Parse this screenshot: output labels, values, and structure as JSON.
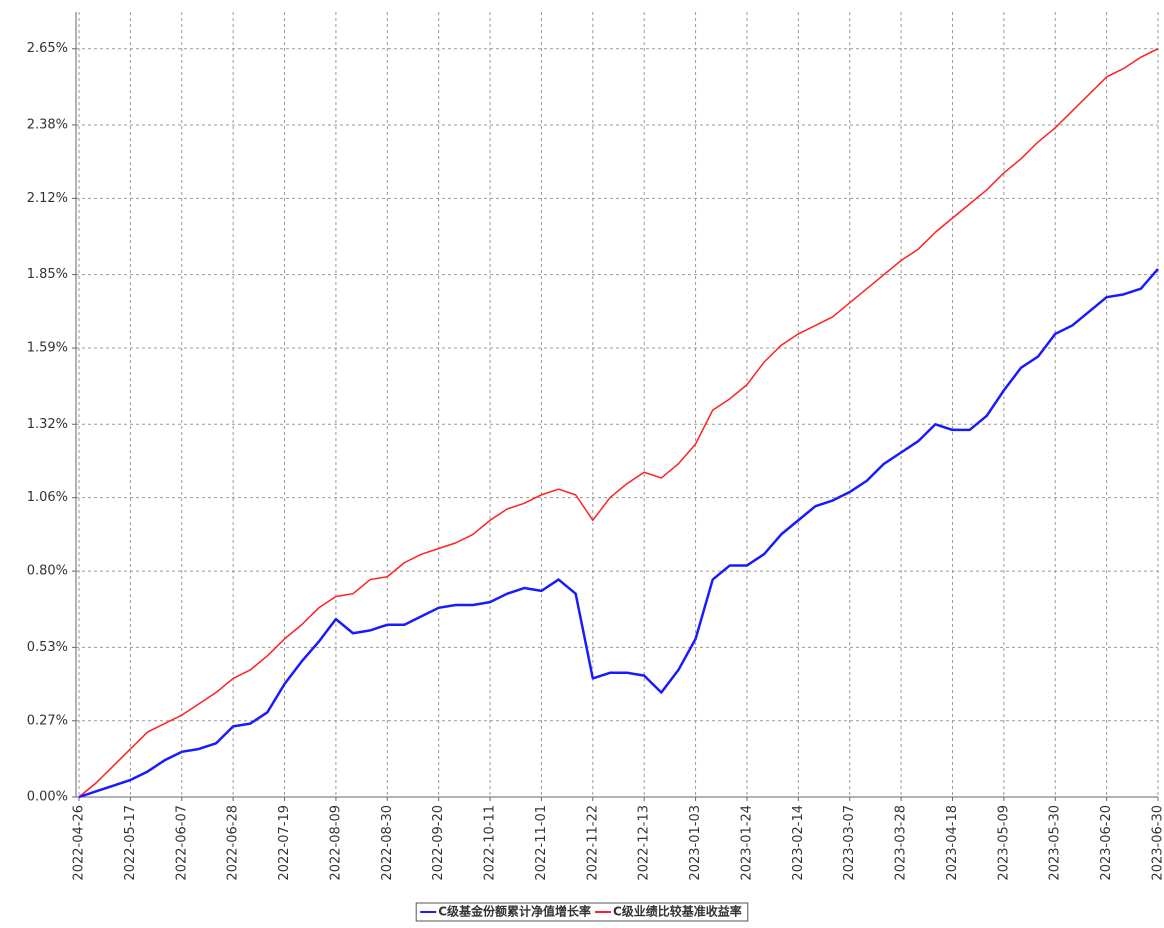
{
  "chart_data": {
    "type": "line",
    "categories": [
      "2022-04-26",
      null,
      null,
      "2022-05-17",
      null,
      null,
      "2022-06-07",
      null,
      null,
      "2022-06-28",
      null,
      null,
      "2022-07-19",
      null,
      null,
      "2022-08-09",
      null,
      null,
      "2022-08-30",
      null,
      null,
      "2022-09-20",
      null,
      null,
      "2022-10-11",
      null,
      null,
      "2022-11-01",
      null,
      null,
      "2022-11-22",
      null,
      null,
      "2022-12-13",
      null,
      null,
      "2023-01-03",
      null,
      null,
      "2023-01-24",
      null,
      null,
      "2023-02-14",
      null,
      null,
      "2023-03-07",
      null,
      null,
      "2023-03-28",
      null,
      null,
      "2023-04-18",
      null,
      null,
      "2023-05-09",
      null,
      null,
      "2023-05-30",
      null,
      null,
      "2023-06-20",
      null,
      null,
      "2023-06-30"
    ],
    "series": [
      {
        "name": "C级基金份额累计净值增长率",
        "color": "#1a1aff",
        "values": [
          0,
          0.02,
          0.04,
          0.06,
          0.09,
          0.13,
          0.16,
          0.17,
          0.19,
          0.25,
          0.26,
          0.3,
          0.4,
          0.48,
          0.55,
          0.63,
          0.58,
          0.59,
          0.61,
          0.61,
          0.64,
          0.67,
          0.68,
          0.68,
          0.69,
          0.72,
          0.74,
          0.73,
          0.77,
          0.72,
          0.42,
          0.44,
          0.44,
          0.43,
          0.37,
          0.45,
          0.56,
          0.77,
          0.82,
          0.82,
          0.86,
          0.93,
          0.98,
          1.03,
          1.05,
          1.08,
          1.12,
          1.18,
          1.22,
          1.26,
          1.32,
          1.3,
          1.3,
          1.35,
          1.44,
          1.52,
          1.56,
          1.64,
          1.67,
          1.72,
          1.77,
          1.78,
          1.8,
          1.87
        ]
      },
      {
        "name": "C级业绩比较基准收益率",
        "color": "#ff2020",
        "values": [
          0,
          0.05,
          0.11,
          0.17,
          0.23,
          0.26,
          0.29,
          0.33,
          0.37,
          0.42,
          0.45,
          0.5,
          0.56,
          0.61,
          0.67,
          0.71,
          0.72,
          0.77,
          0.78,
          0.83,
          0.86,
          0.88,
          0.9,
          0.93,
          0.98,
          1.02,
          1.04,
          1.07,
          1.09,
          1.07,
          0.98,
          1.06,
          1.11,
          1.15,
          1.13,
          1.18,
          1.25,
          1.37,
          1.41,
          1.46,
          1.54,
          1.6,
          1.64,
          1.67,
          1.7,
          1.75,
          1.8,
          1.85,
          1.9,
          1.94,
          2.0,
          2.05,
          2.1,
          2.15,
          2.21,
          2.26,
          2.32,
          2.37,
          2.43,
          2.49,
          2.55,
          2.58,
          2.62,
          2.65
        ]
      }
    ],
    "ylim": [
      0,
      2.78
    ],
    "yticks": [
      {
        "value": 0,
        "label": "0.00%"
      },
      {
        "value": 0.27,
        "label": "0.27%"
      },
      {
        "value": 0.53,
        "label": "0.53%"
      },
      {
        "value": 0.8,
        "label": "0.80%"
      },
      {
        "value": 1.06,
        "label": "1.06%"
      },
      {
        "value": 1.32,
        "label": "1.32%"
      },
      {
        "value": 1.59,
        "label": "1.59%"
      },
      {
        "value": 1.85,
        "label": "1.85%"
      },
      {
        "value": 2.12,
        "label": "2.12%"
      },
      {
        "value": 2.38,
        "label": "2.38%"
      },
      {
        "value": 2.65,
        "label": "2.65%"
      }
    ],
    "grid": true,
    "legend": "bottom"
  }
}
